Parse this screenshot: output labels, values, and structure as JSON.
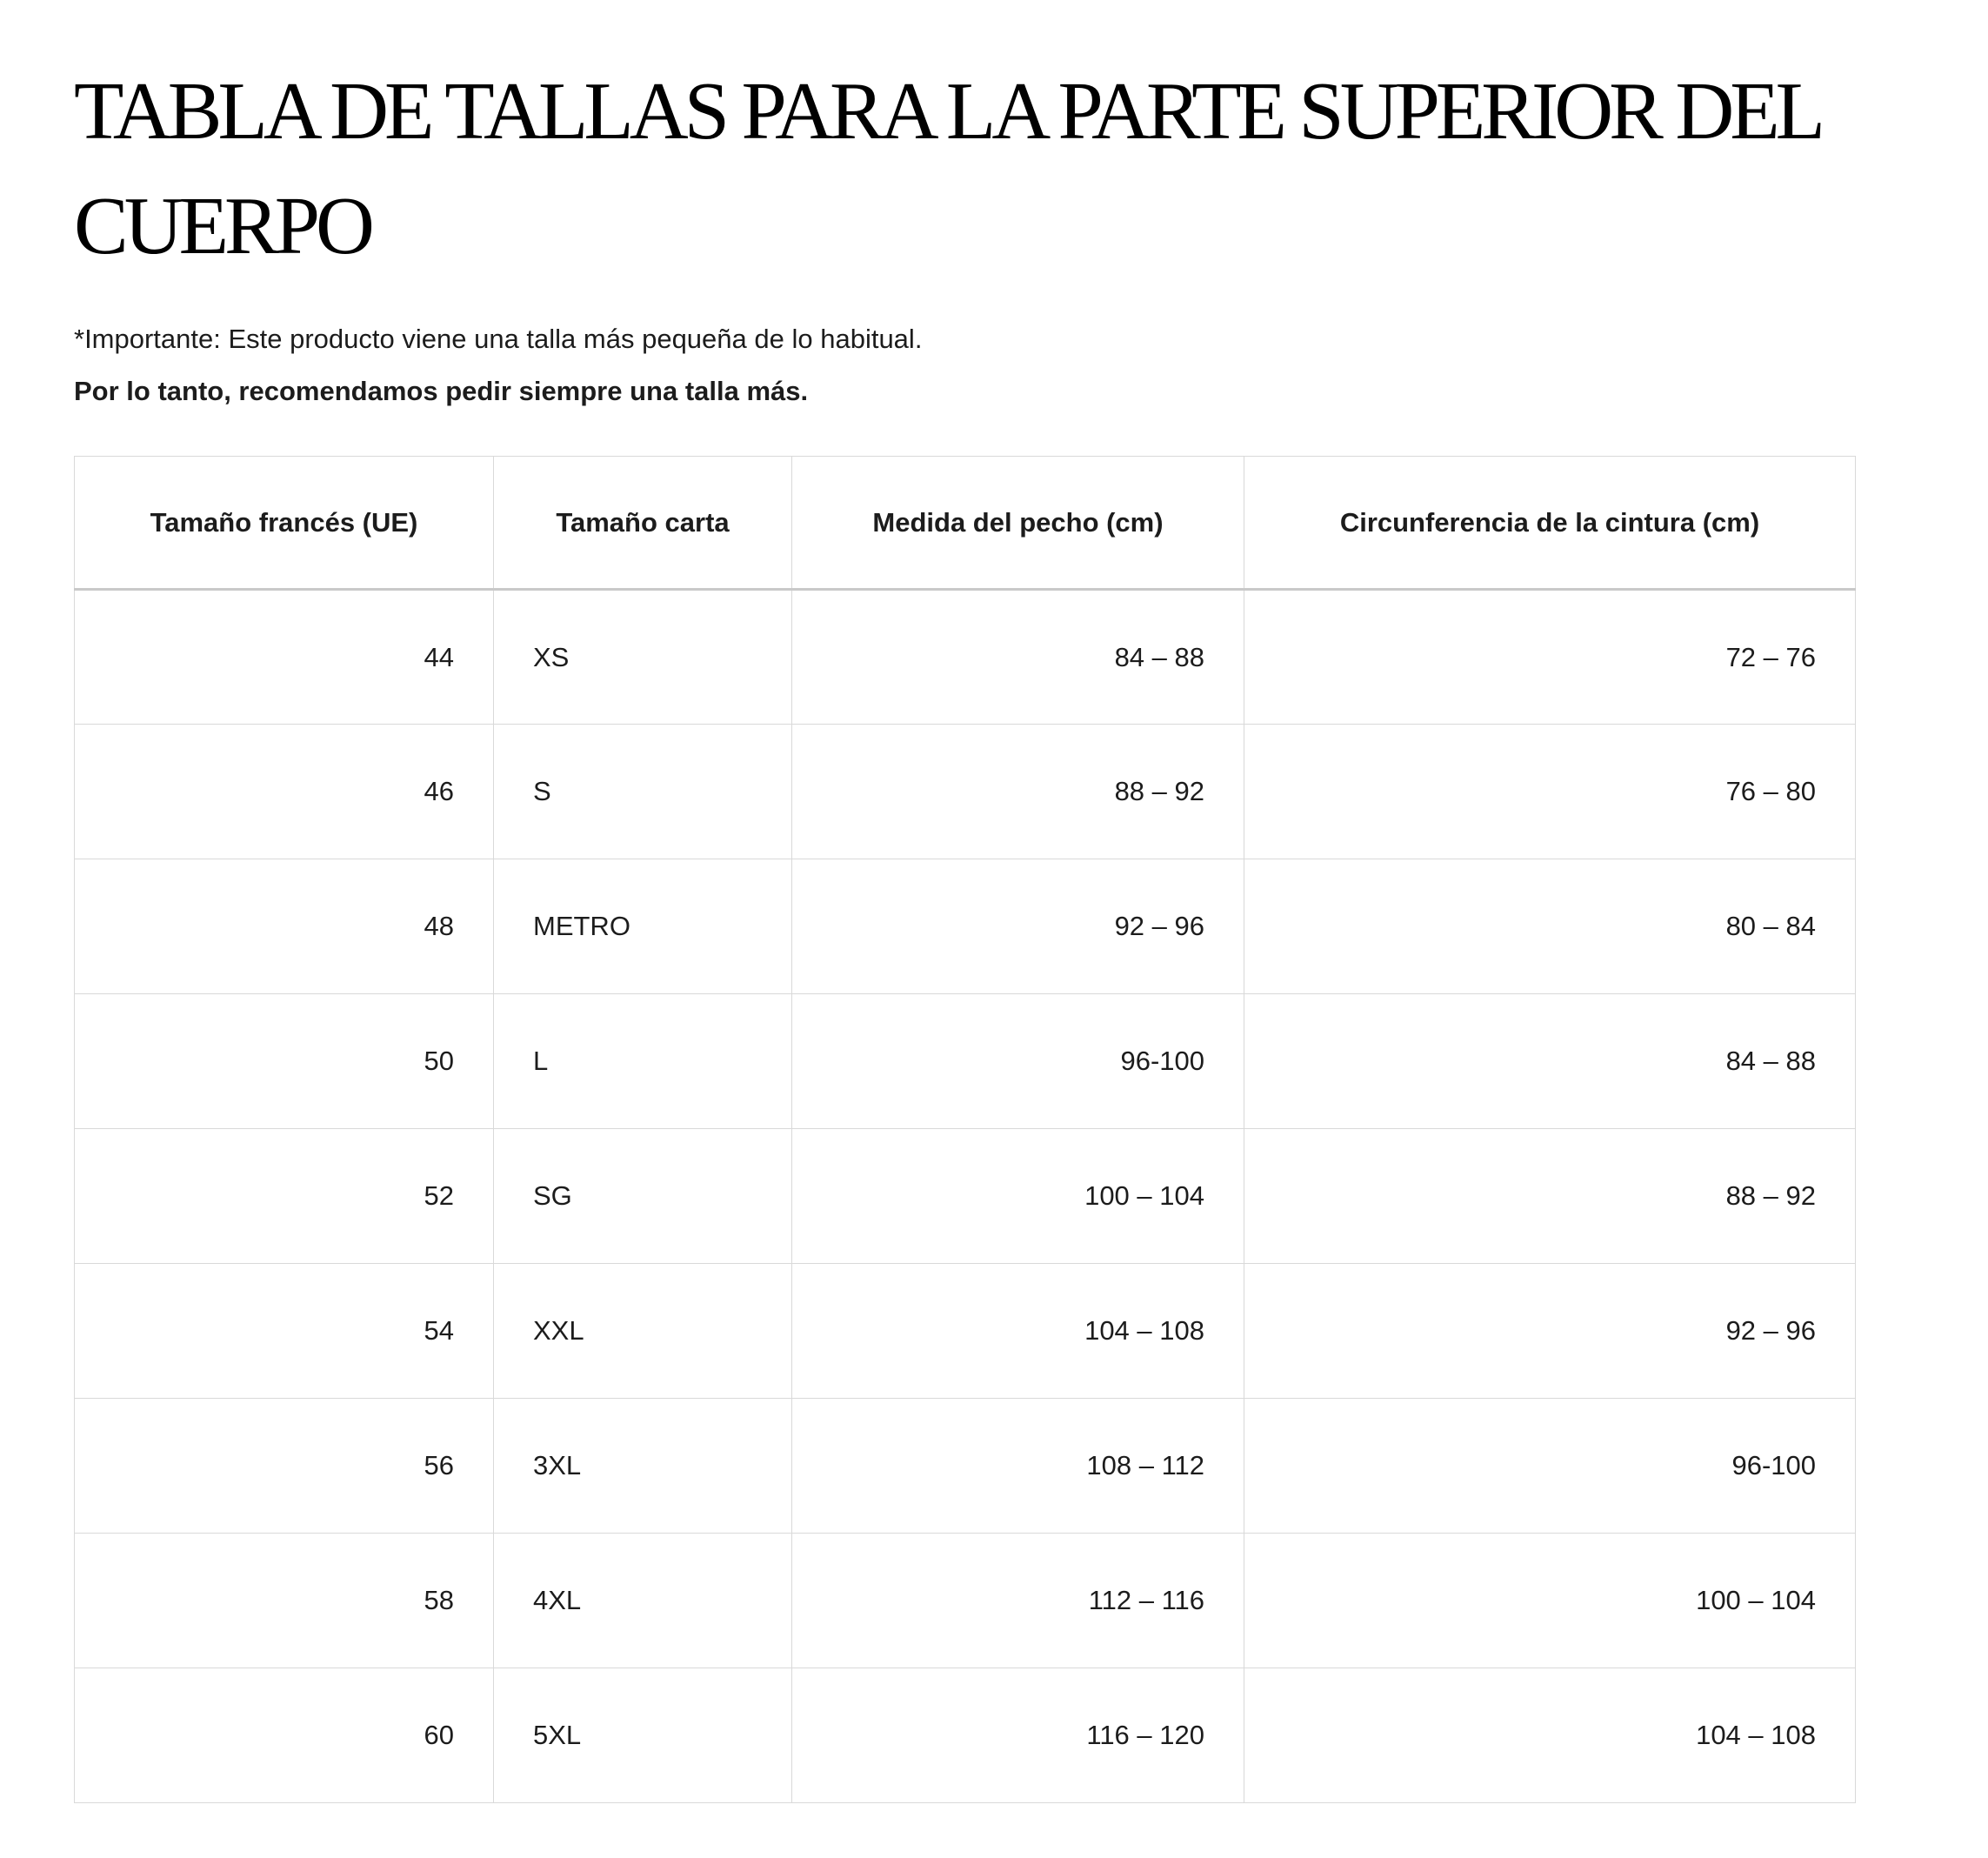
{
  "page": {
    "title": "TABLA DE TALLAS PARA LA PARTE SUPERIOR DEL CUERPO",
    "note_line1": "*Importante: Este producto viene una talla más pequeña de lo habitual.",
    "note_line2": "Por lo tanto, recomendamos pedir siempre una talla más."
  },
  "size_table": {
    "columns": [
      "Tamaño francés (UE)",
      "Tamaño carta",
      "Medida del pecho (cm)",
      "Circunferencia de la cintura (cm)"
    ],
    "rows": [
      [
        "44",
        "XS",
        "84 – 88",
        "72 – 76"
      ],
      [
        "46",
        "S",
        "88 – 92",
        "76 – 80"
      ],
      [
        "48",
        "METRO",
        "92 – 96",
        "80 – 84"
      ],
      [
        "50",
        "L",
        "96-100",
        "84 – 88"
      ],
      [
        "52",
        "SG",
        "100 – 104",
        "88 – 92"
      ],
      [
        "54",
        "XXL",
        "104 – 108",
        "92 – 96"
      ],
      [
        "56",
        "3XL",
        "108 – 112",
        "96-100"
      ],
      [
        "58",
        "4XL",
        "112 – 116",
        "100 – 104"
      ],
      [
        "60",
        "5XL",
        "116 – 120",
        "104 – 108"
      ]
    ]
  },
  "colors": {
    "background": "#ffffff",
    "text": "#1c1c1c",
    "title_text": "#000000",
    "table_border": "#d9d9d9",
    "header_divider": "#c9c9c9"
  }
}
